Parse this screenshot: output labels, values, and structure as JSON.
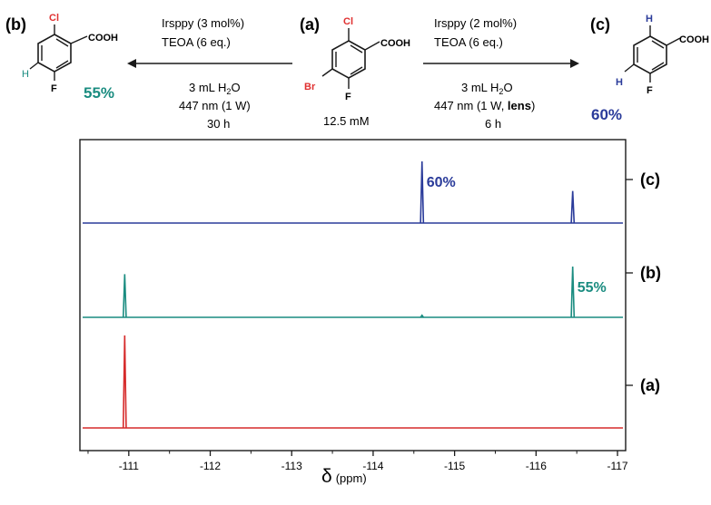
{
  "scheme": {
    "compounds": {
      "a": {
        "label": "(a)",
        "concentration": "12.5 mM",
        "substituents": {
          "cl": "Cl",
          "br": "Br",
          "f": "F",
          "acid": "COOH"
        }
      },
      "b": {
        "label": "(b)",
        "yield": "55%",
        "substituents": {
          "cl": "Cl",
          "h": "H",
          "f": "F",
          "acid": "COOH"
        }
      },
      "c": {
        "label": "(c)",
        "yield": "60%",
        "substituents": {
          "h1": "H",
          "h2": "H",
          "f": "F",
          "acid": "COOH"
        }
      }
    },
    "left_arrow": {
      "catalyst": "Irsppy (3 mol%)",
      "reagent": "TEOA (6 eq.)",
      "solvent_prefix": "3 mL H",
      "solvent_sub": "2",
      "solvent_suffix": "O",
      "light": "447 nm (1 W)",
      "time": "30 h"
    },
    "right_arrow": {
      "catalyst": "Irsppy (2 mol%)",
      "reagent": "TEOA (6 eq.)",
      "solvent_prefix": "3 mL H",
      "solvent_sub": "2",
      "solvent_suffix": "O",
      "light_prefix": "447 nm (1 W, ",
      "light_bold": "lens",
      "light_suffix": ")",
      "time": "6 h"
    }
  },
  "colors": {
    "trace_a": "#d62b2b",
    "trace_b": "#1a8c80",
    "trace_c": "#2a3b9a",
    "red_atom": "#e03030",
    "teal_atom": "#1a8c80",
    "blue_atom": "#2a3b9a"
  },
  "chart_data": {
    "type": "line",
    "title": "",
    "xlabel_symbol": "δ",
    "xlabel_unit": "(ppm)",
    "xlim": [
      -110.4,
      -117.1
    ],
    "x_reversed": true,
    "xticks": [
      -111,
      -112,
      -113,
      -114,
      -115,
      -116,
      -117
    ],
    "tick_labels": [
      "-111",
      "-112",
      "-113",
      "-114",
      "-115",
      "-116",
      "-117"
    ],
    "series": [
      {
        "name": "(c)",
        "label": "(c)",
        "color": "#2a3b9a",
        "peaks": [
          {
            "x": -114.6,
            "h": 1.0
          },
          {
            "x": -116.45,
            "h": 0.52
          }
        ],
        "annotation": {
          "text": "60%",
          "at_x": -114.6
        }
      },
      {
        "name": "(b)",
        "label": "(b)",
        "color": "#1a8c80",
        "peaks": [
          {
            "x": -110.95,
            "h": 0.85
          },
          {
            "x": -114.6,
            "h": 0.04
          },
          {
            "x": -116.45,
            "h": 1.0
          }
        ],
        "annotation": {
          "text": "55%",
          "at_x": -116.45
        }
      },
      {
        "name": "(a)",
        "label": "(a)",
        "color": "#d62b2b",
        "peaks": [
          {
            "x": -110.95,
            "h": 1.0
          }
        ],
        "annotation": null
      }
    ]
  }
}
